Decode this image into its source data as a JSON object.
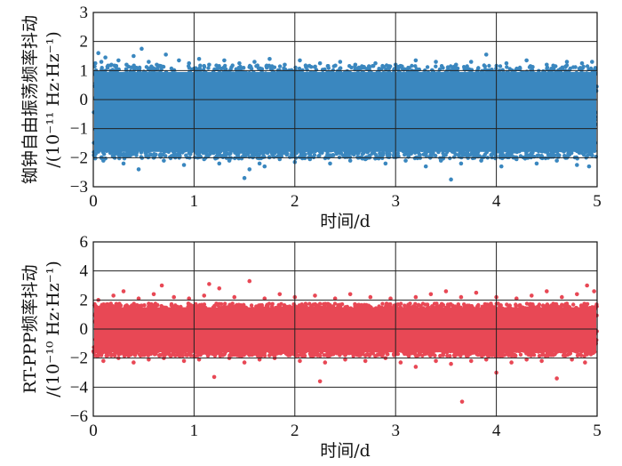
{
  "chart_data": [
    {
      "type": "scatter",
      "ylabel_line1": "铷钟自由振荡频率抖动",
      "ylabel_line2": "/(10⁻¹¹ Hz·Hz⁻¹)",
      "xlabel": "时间/d",
      "xlim": [
        0,
        5
      ],
      "ylim": [
        -3,
        3
      ],
      "xticks": [
        0,
        1,
        2,
        3,
        4,
        5
      ],
      "yticks": [
        3,
        2,
        1,
        0,
        -1,
        -2,
        -3
      ],
      "grid": true,
      "color": "#3a87bf",
      "band": {
        "upper": 0.95,
        "lower": -1.8
      },
      "points": [
        {
          "x": 0.02,
          "y": 1.25
        },
        {
          "x": 0.05,
          "y": 1.6
        },
        {
          "x": 0.08,
          "y": 1.3
        },
        {
          "x": 0.12,
          "y": 1.45
        },
        {
          "x": 0.18,
          "y": 1.2
        },
        {
          "x": 0.25,
          "y": 1.35
        },
        {
          "x": 0.33,
          "y": 1.2
        },
        {
          "x": 0.4,
          "y": 1.5
        },
        {
          "x": 0.48,
          "y": 1.75
        },
        {
          "x": 0.55,
          "y": 1.3
        },
        {
          "x": 0.63,
          "y": 1.2
        },
        {
          "x": 0.72,
          "y": 1.55
        },
        {
          "x": 0.85,
          "y": 1.35
        },
        {
          "x": 0.95,
          "y": 1.25
        },
        {
          "x": 1.05,
          "y": 1.4
        },
        {
          "x": 1.15,
          "y": 1.2
        },
        {
          "x": 1.3,
          "y": 1.35
        },
        {
          "x": 1.45,
          "y": 1.25
        },
        {
          "x": 1.6,
          "y": 1.3
        },
        {
          "x": 1.75,
          "y": 1.4
        },
        {
          "x": 1.9,
          "y": 1.2
        },
        {
          "x": 2.05,
          "y": 1.35
        },
        {
          "x": 2.25,
          "y": 1.25
        },
        {
          "x": 2.45,
          "y": 1.3
        },
        {
          "x": 2.6,
          "y": 1.2
        },
        {
          "x": 2.8,
          "y": 1.25
        },
        {
          "x": 3.0,
          "y": 1.2
        },
        {
          "x": 3.2,
          "y": 1.35
        },
        {
          "x": 3.4,
          "y": 1.3
        },
        {
          "x": 3.6,
          "y": 1.2
        },
        {
          "x": 3.75,
          "y": 1.3
        },
        {
          "x": 3.9,
          "y": 1.55
        },
        {
          "x": 4.1,
          "y": 1.25
        },
        {
          "x": 4.3,
          "y": 1.35
        },
        {
          "x": 4.5,
          "y": 1.2
        },
        {
          "x": 4.7,
          "y": 1.3
        },
        {
          "x": 4.85,
          "y": 1.25
        },
        {
          "x": 4.95,
          "y": 1.3
        },
        {
          "x": 0.1,
          "y": -2.1
        },
        {
          "x": 0.3,
          "y": -2.2
        },
        {
          "x": 0.45,
          "y": -2.4
        },
        {
          "x": 0.6,
          "y": -2.0
        },
        {
          "x": 0.7,
          "y": -2.1
        },
        {
          "x": 0.9,
          "y": -2.25
        },
        {
          "x": 1.1,
          "y": -2.05
        },
        {
          "x": 1.25,
          "y": -2.2
        },
        {
          "x": 1.35,
          "y": -2.1
        },
        {
          "x": 1.5,
          "y": -2.7
        },
        {
          "x": 1.55,
          "y": -2.4
        },
        {
          "x": 1.65,
          "y": -2.2
        },
        {
          "x": 1.7,
          "y": -2.3
        },
        {
          "x": 1.85,
          "y": -2.05
        },
        {
          "x": 2.0,
          "y": -2.15
        },
        {
          "x": 2.15,
          "y": -2.05
        },
        {
          "x": 2.35,
          "y": -2.2
        },
        {
          "x": 2.55,
          "y": -2.1
        },
        {
          "x": 2.7,
          "y": -2.05
        },
        {
          "x": 2.9,
          "y": -2.2
        },
        {
          "x": 3.1,
          "y": -2.1
        },
        {
          "x": 3.3,
          "y": -2.3
        },
        {
          "x": 3.45,
          "y": -2.1
        },
        {
          "x": 3.55,
          "y": -2.75
        },
        {
          "x": 3.65,
          "y": -2.2
        },
        {
          "x": 3.85,
          "y": -2.1
        },
        {
          "x": 4.05,
          "y": -2.3
        },
        {
          "x": 4.2,
          "y": -2.05
        },
        {
          "x": 4.4,
          "y": -2.2
        },
        {
          "x": 4.6,
          "y": -2.1
        },
        {
          "x": 4.8,
          "y": -2.25
        },
        {
          "x": 4.92,
          "y": -2.3
        }
      ]
    },
    {
      "type": "scatter",
      "ylabel_line1": "RT-PPP频率抖动",
      "ylabel_line2": "/(10⁻¹⁰ Hz·Hz⁻¹)",
      "xlabel": "时间/d",
      "xlim": [
        0,
        5
      ],
      "ylim": [
        -6,
        6
      ],
      "xticks": [
        0,
        1,
        2,
        3,
        4,
        5
      ],
      "yticks": [
        6,
        4,
        2,
        0,
        -2,
        -4,
        -6
      ],
      "grid": true,
      "color": "#e84855",
      "band": {
        "upper": 1.5,
        "lower": -1.6
      },
      "points": [
        {
          "x": 0.05,
          "y": 2.0
        },
        {
          "x": 0.2,
          "y": 2.3
        },
        {
          "x": 0.3,
          "y": 2.6
        },
        {
          "x": 0.45,
          "y": 2.1
        },
        {
          "x": 0.6,
          "y": 2.4
        },
        {
          "x": 0.68,
          "y": 3.0
        },
        {
          "x": 0.8,
          "y": 2.2
        },
        {
          "x": 0.95,
          "y": 2.1
        },
        {
          "x": 1.1,
          "y": 2.3
        },
        {
          "x": 1.15,
          "y": 3.1
        },
        {
          "x": 1.25,
          "y": 2.8
        },
        {
          "x": 1.4,
          "y": 2.2
        },
        {
          "x": 1.55,
          "y": 3.3
        },
        {
          "x": 1.7,
          "y": 2.1
        },
        {
          "x": 1.85,
          "y": 2.4
        },
        {
          "x": 2.0,
          "y": 2.2
        },
        {
          "x": 2.2,
          "y": 2.3
        },
        {
          "x": 2.4,
          "y": 2.1
        },
        {
          "x": 2.55,
          "y": 2.4
        },
        {
          "x": 2.75,
          "y": 2.2
        },
        {
          "x": 2.95,
          "y": 2.1
        },
        {
          "x": 3.2,
          "y": 2.2
        },
        {
          "x": 3.35,
          "y": 2.4
        },
        {
          "x": 3.5,
          "y": 2.6
        },
        {
          "x": 3.65,
          "y": 2.2
        },
        {
          "x": 3.8,
          "y": 2.5
        },
        {
          "x": 4.0,
          "y": 2.2
        },
        {
          "x": 4.2,
          "y": 2.1
        },
        {
          "x": 4.35,
          "y": 2.3
        },
        {
          "x": 4.5,
          "y": 2.6
        },
        {
          "x": 4.65,
          "y": 2.2
        },
        {
          "x": 4.8,
          "y": 2.4
        },
        {
          "x": 4.9,
          "y": 3.0
        },
        {
          "x": 4.97,
          "y": 2.6
        },
        {
          "x": 0.1,
          "y": -2.2
        },
        {
          "x": 0.25,
          "y": -2.0
        },
        {
          "x": 0.4,
          "y": -2.3
        },
        {
          "x": 0.55,
          "y": -2.1
        },
        {
          "x": 0.7,
          "y": -2.0
        },
        {
          "x": 0.9,
          "y": -2.2
        },
        {
          "x": 1.05,
          "y": -2.1
        },
        {
          "x": 1.2,
          "y": -3.3
        },
        {
          "x": 1.35,
          "y": -2.0
        },
        {
          "x": 1.5,
          "y": -2.3
        },
        {
          "x": 1.65,
          "y": -2.1
        },
        {
          "x": 1.8,
          "y": -2.0
        },
        {
          "x": 2.05,
          "y": -2.2
        },
        {
          "x": 2.25,
          "y": -3.6
        },
        {
          "x": 2.3,
          "y": -2.3
        },
        {
          "x": 2.5,
          "y": -2.1
        },
        {
          "x": 2.7,
          "y": -2.2
        },
        {
          "x": 2.9,
          "y": -2.0
        },
        {
          "x": 3.05,
          "y": -2.3
        },
        {
          "x": 3.2,
          "y": -2.6
        },
        {
          "x": 3.4,
          "y": -2.2
        },
        {
          "x": 3.55,
          "y": -2.4
        },
        {
          "x": 3.66,
          "y": -5.0
        },
        {
          "x": 3.75,
          "y": -2.2
        },
        {
          "x": 3.9,
          "y": -2.1
        },
        {
          "x": 4.0,
          "y": -3.0
        },
        {
          "x": 4.15,
          "y": -2.3
        },
        {
          "x": 4.3,
          "y": -2.1
        },
        {
          "x": 4.45,
          "y": -2.2
        },
        {
          "x": 4.6,
          "y": -3.4
        },
        {
          "x": 4.75,
          "y": -2.1
        },
        {
          "x": 4.88,
          "y": -2.3
        }
      ]
    }
  ]
}
